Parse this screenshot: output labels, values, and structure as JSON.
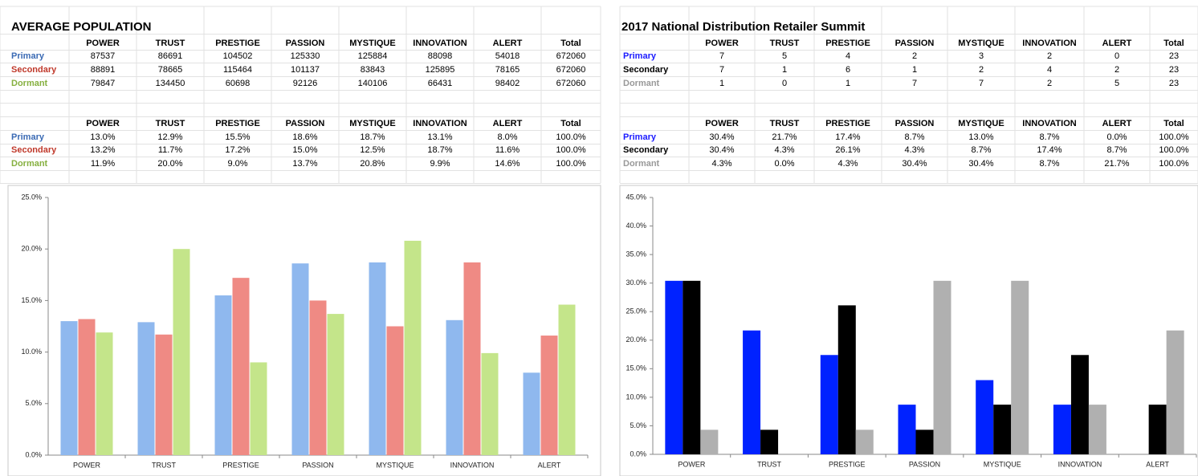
{
  "tables": [
    {
      "title": "AVERAGE POPULATION",
      "row_colors": [
        "#3a6ab4",
        "#c0392b",
        "#86b040"
      ],
      "header": [
        "POWER",
        "TRUST",
        "PRESTIGE",
        "PASSION",
        "MYSTIQUE",
        "INNOVATION",
        "ALERT",
        "Total"
      ],
      "rows": [
        [
          "Primary",
          "87537",
          "86691",
          "104502",
          "125330",
          "125884",
          "88098",
          "54018",
          "672060"
        ],
        [
          "Secondary",
          "88891",
          "78665",
          "115464",
          "101137",
          "83843",
          "125895",
          "78165",
          "672060"
        ],
        [
          "Dormant",
          "79847",
          "134450",
          "60698",
          "92126",
          "140106",
          "66431",
          "98402",
          "672060"
        ]
      ],
      "pct_header": [
        "POWER",
        "TRUST",
        "PRESTIGE",
        "PASSION",
        "MYSTIQUE",
        "INNOVATION",
        "ALERT",
        "Total"
      ],
      "pct_rows": [
        [
          "Primary",
          "13.0%",
          "12.9%",
          "15.5%",
          "18.6%",
          "18.7%",
          "13.1%",
          "8.0%",
          "100.0%"
        ],
        [
          "Secondary",
          "13.2%",
          "11.7%",
          "17.2%",
          "15.0%",
          "12.5%",
          "18.7%",
          "11.6%",
          "100.0%"
        ],
        [
          "Dormant",
          "11.9%",
          "20.0%",
          "9.0%",
          "13.7%",
          "20.8%",
          "9.9%",
          "14.6%",
          "100.0%"
        ]
      ]
    },
    {
      "title": "2017 National Distribution Retailer Summit",
      "row_colors": [
        "#1a1aff",
        "#000000",
        "#999999"
      ],
      "header": [
        "POWER",
        "TRUST",
        "PRESTIGE",
        "PASSION",
        "MYSTIQUE",
        "INNOVATION",
        "ALERT",
        "Total"
      ],
      "rows": [
        [
          "Primary",
          "7",
          "5",
          "4",
          "2",
          "3",
          "2",
          "0",
          "23"
        ],
        [
          "Secondary",
          "7",
          "1",
          "6",
          "1",
          "2",
          "4",
          "2",
          "23"
        ],
        [
          "Dormant",
          "1",
          "0",
          "1",
          "7",
          "7",
          "2",
          "5",
          "23"
        ]
      ],
      "pct_header": [
        "POWER",
        "TRUST",
        "PRESTIGE",
        "PASSION",
        "MYSTIQUE",
        "INNOVATION",
        "ALERT",
        "Total"
      ],
      "pct_rows": [
        [
          "Primary",
          "30.4%",
          "21.7%",
          "17.4%",
          "8.7%",
          "13.0%",
          "8.7%",
          "0.0%",
          "100.0%"
        ],
        [
          "Secondary",
          "30.4%",
          "4.3%",
          "26.1%",
          "4.3%",
          "8.7%",
          "17.4%",
          "8.7%",
          "100.0%"
        ],
        [
          "Dormant",
          "4.3%",
          "0.0%",
          "4.3%",
          "30.4%",
          "30.4%",
          "8.7%",
          "21.7%",
          "100.0%"
        ]
      ]
    }
  ],
  "chart_data": [
    {
      "type": "bar",
      "categories": [
        "POWER",
        "TRUST",
        "PRESTIGE",
        "PASSION",
        "MYSTIQUE",
        "INNOVATION",
        "ALERT"
      ],
      "series": [
        {
          "color": "#8fb8ee",
          "values": [
            13.0,
            12.9,
            15.5,
            18.6,
            18.7,
            13.1,
            8.0
          ]
        },
        {
          "color": "#ef8a84",
          "values": [
            13.2,
            11.7,
            17.2,
            15.0,
            12.5,
            18.7,
            11.6
          ]
        },
        {
          "color": "#c4e58a",
          "values": [
            11.9,
            20.0,
            9.0,
            13.7,
            20.8,
            9.9,
            14.6
          ]
        }
      ],
      "ylim": [
        0,
        25
      ],
      "yticks": [
        {
          "value": 0,
          "label": "0.0%"
        },
        {
          "value": 5,
          "label": "5.0%"
        },
        {
          "value": 10,
          "label": "10.0%"
        },
        {
          "value": 15,
          "label": "15.0%"
        },
        {
          "value": 20,
          "label": "20.0%"
        },
        {
          "value": 25,
          "label": "25.0%"
        }
      ],
      "grid": false
    },
    {
      "type": "bar",
      "categories": [
        "POWER",
        "TRUST",
        "PRESTIGE",
        "PASSION",
        "MYSTIQUE",
        "INNOVATION",
        "ALERT"
      ],
      "series": [
        {
          "color": "#0022ff",
          "values": [
            30.4,
            21.7,
            17.4,
            8.7,
            13.0,
            8.7,
            0.0
          ]
        },
        {
          "color": "#000000",
          "values": [
            30.4,
            4.3,
            26.1,
            4.3,
            8.7,
            17.4,
            8.7
          ]
        },
        {
          "color": "#b0b0b0",
          "values": [
            4.3,
            0.0,
            4.3,
            30.4,
            30.4,
            8.7,
            21.7
          ]
        }
      ],
      "ylim": [
        0,
        45
      ],
      "yticks": [
        {
          "value": 0,
          "label": "0.0%"
        },
        {
          "value": 5,
          "label": "5.0%"
        },
        {
          "value": 10,
          "label": "10.0%"
        },
        {
          "value": 15,
          "label": "15.0%"
        },
        {
          "value": 20,
          "label": "20.0%"
        },
        {
          "value": 25,
          "label": "25.0%"
        },
        {
          "value": 30,
          "label": "30.0%"
        },
        {
          "value": 35,
          "label": "35.0%"
        },
        {
          "value": 40,
          "label": "40.0%"
        },
        {
          "value": 45,
          "label": "45.0%"
        }
      ],
      "grid": false
    }
  ]
}
